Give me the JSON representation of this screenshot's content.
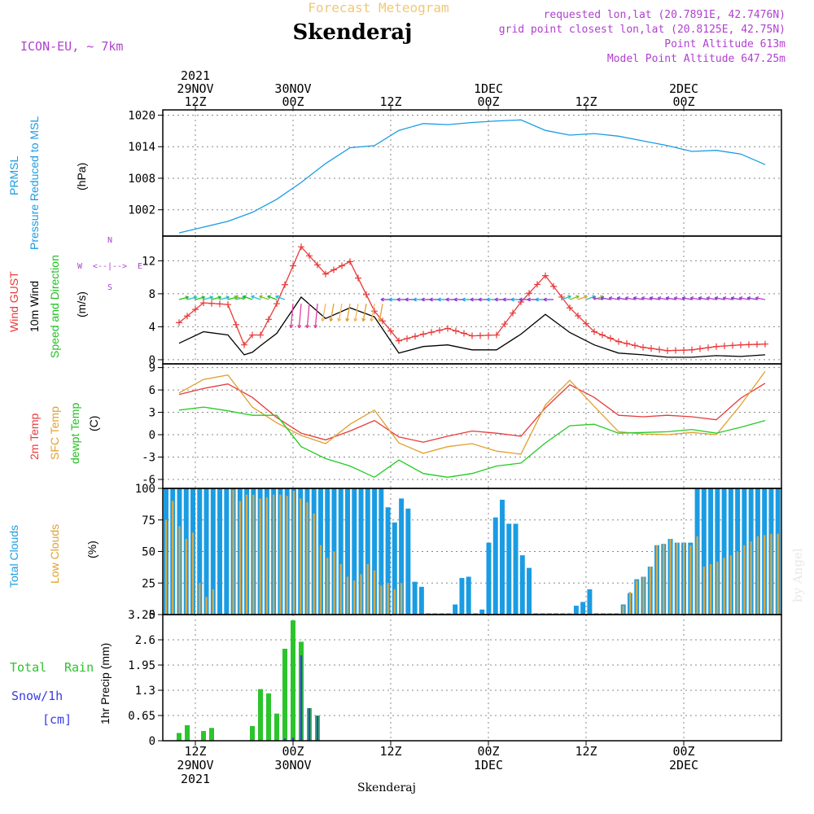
{
  "header": {
    "subtitle": "Forecast Meteogram",
    "location": "Skenderaj",
    "model": "ICON-EU, ~ 7km",
    "requested": "requested lon,lat (20.7891E, 42.7476N)",
    "grid_point": "grid point closest lon,lat (20.8125E, 42.75N)",
    "point_altitude": "Point Altitude 613m",
    "model_altitude": "Model Point Altitude 647.25m",
    "footer_location": "Skenderaj",
    "watermark": "by Angel"
  },
  "colors": {
    "pressure": "#1a9ce3",
    "gust": "#e83a3a",
    "wind": "#000000",
    "direction": "#22c022",
    "temp": "#e83a3a",
    "sfc": "#e0a030",
    "dewpt": "#22cc22",
    "total_clouds": "#1a9ce3",
    "low_clouds": "#d4a84a",
    "rain": "#2cc42c",
    "snow": "#3a3ae8",
    "header_purple": "#b040d0",
    "header_gold": "#f0c878"
  },
  "chart_data": [
    {
      "type": "line",
      "title": "",
      "series_name": "PRMSL Pressure Reduced to MSL",
      "ylabel": "(hPa)",
      "ylim": [
        997,
        1021
      ],
      "yticks": [
        "1002",
        "1008",
        "1014",
        "1020"
      ],
      "x_hours": [
        0,
        3,
        6,
        9,
        12,
        15,
        18,
        21,
        24,
        27,
        30,
        33,
        36,
        39,
        42,
        45,
        48,
        51,
        54,
        57,
        60,
        63,
        66,
        69,
        72
      ],
      "values": [
        997.6,
        998.7,
        999.8,
        1001.5,
        1004,
        1007.2,
        1010.8,
        1013.8,
        1014.2,
        1017.1,
        1018.4,
        1018.2,
        1018.6,
        1018.9,
        1019.1,
        1017.1,
        1016.2,
        1016.5,
        1016,
        1015.1,
        1014.2,
        1013.1,
        1013.3,
        1012.6,
        1010.6
      ]
    },
    {
      "type": "line",
      "title": "",
      "ylabel": "(m/s)",
      "ylim": [
        -0.5,
        15
      ],
      "yticks": [
        "0",
        "4",
        "8",
        "12"
      ],
      "compass": [
        "N",
        "S",
        "W",
        "E",
        "<--|-->"
      ],
      "series": [
        {
          "name": "Wind GUST",
          "x_hours": [
            0,
            3,
            6,
            8,
            9,
            10,
            12,
            15,
            18,
            21,
            24,
            27,
            30,
            33,
            36,
            39,
            42,
            45,
            48,
            51,
            54,
            57,
            60,
            63,
            66,
            69,
            72
          ],
          "values": [
            4.5,
            6.9,
            6.7,
            1.8,
            3,
            3,
            6.8,
            13.7,
            10.4,
            11.9,
            5.9,
            2.3,
            3.1,
            3.8,
            2.9,
            3,
            7,
            10.2,
            6.3,
            3.4,
            2.2,
            1.5,
            1.1,
            1.2,
            1.6,
            1.8,
            1.9
          ]
        },
        {
          "name": "10m Wind",
          "x_hours": [
            0,
            3,
            6,
            8,
            9,
            10,
            12,
            15,
            18,
            21,
            24,
            27,
            30,
            33,
            36,
            39,
            42,
            45,
            48,
            51,
            54,
            57,
            60,
            63,
            66,
            69,
            72
          ],
          "values": [
            2,
            3.4,
            3,
            0.6,
            0.9,
            1.7,
            3.2,
            7.6,
            5,
            6.3,
            5.2,
            0.8,
            1.6,
            1.8,
            1.2,
            1.2,
            3.1,
            5.5,
            3.3,
            1.8,
            0.8,
            0.6,
            0.3,
            0.3,
            0.5,
            0.4,
            0.6
          ]
        }
      ]
    },
    {
      "type": "line",
      "title": "",
      "ylabel": "(C)",
      "ylim": [
        -7.2,
        9.5
      ],
      "yticks": [
        "-6",
        "-3",
        "0",
        "3",
        "6",
        "9"
      ],
      "series": [
        {
          "name": "2m Temp",
          "x_hours": [
            0,
            3,
            6,
            9,
            12,
            15,
            18,
            21,
            24,
            27,
            30,
            33,
            36,
            39,
            42,
            45,
            48,
            51,
            54,
            57,
            60,
            63,
            66,
            69,
            72
          ],
          "values": [
            5.4,
            6.2,
            6.8,
            5,
            2.3,
            0.2,
            -0.7,
            0.5,
            1.9,
            -0.3,
            -1,
            -0.2,
            0.5,
            0.2,
            -0.2,
            3.6,
            6.7,
            5,
            2.6,
            2.4,
            2.6,
            2.4,
            2,
            4.9,
            6.9
          ]
        },
        {
          "name": "SFC Temp",
          "x_hours": [
            0,
            3,
            6,
            9,
            12,
            15,
            18,
            21,
            24,
            27,
            30,
            33,
            36,
            39,
            42,
            45,
            48,
            51,
            54,
            57,
            60,
            63,
            66,
            69,
            72
          ],
          "values": [
            5.6,
            7.4,
            8,
            3.7,
            1.6,
            -0.1,
            -1.2,
            1.4,
            3.3,
            -1.1,
            -2.5,
            -1.6,
            -1.2,
            -2.2,
            -2.6,
            4,
            7.3,
            3.8,
            0.4,
            0.1,
            0,
            0.3,
            0,
            4,
            8.5
          ]
        },
        {
          "name": "dewpt Temp",
          "x_hours": [
            0,
            3,
            6,
            9,
            12,
            15,
            18,
            21,
            24,
            27,
            30,
            33,
            36,
            39,
            42,
            45,
            48,
            51,
            54,
            57,
            60,
            63,
            66,
            69,
            72
          ],
          "values": [
            3.3,
            3.7,
            3.2,
            2.6,
            2.6,
            -1.6,
            -3.2,
            -4.2,
            -5.7,
            -3.4,
            -5.2,
            -5.7,
            -5.2,
            -4.2,
            -3.8,
            -1.1,
            1.2,
            1.4,
            0.2,
            0.3,
            0.4,
            0.7,
            0.2,
            1,
            1.9
          ]
        }
      ]
    },
    {
      "type": "bar",
      "title": "",
      "ylabel": "(%)",
      "ylim": [
        0,
        100
      ],
      "yticks": [
        "0",
        "25",
        "50",
        "75",
        "100"
      ],
      "series": [
        {
          "name": "Total Clouds",
          "values": [
            100,
            100,
            100,
            100,
            100,
            100,
            100,
            100,
            100,
            100,
            100,
            100,
            100,
            100,
            100,
            100,
            100,
            100,
            100,
            100,
            100,
            100,
            100,
            100,
            100,
            100,
            100,
            100,
            100,
            100,
            100,
            100,
            100,
            85,
            73,
            92,
            84,
            26,
            22,
            1,
            1,
            1,
            1,
            8,
            29,
            30,
            1,
            4,
            57,
            77,
            91,
            72,
            72,
            47,
            37,
            1,
            1,
            1,
            1,
            1,
            1,
            7,
            10,
            20,
            1,
            1,
            1,
            1,
            8,
            17,
            28,
            30,
            38,
            55,
            56,
            60,
            57,
            57,
            57,
            100,
            100,
            100,
            100,
            100,
            100,
            100,
            100,
            100,
            100,
            100,
            100,
            100
          ]
        },
        {
          "name": "Low Clouds",
          "values": [
            75,
            90,
            70,
            60,
            65,
            25,
            14,
            20,
            0,
            0,
            99,
            90,
            95,
            95,
            92,
            93,
            95,
            95,
            94,
            98,
            92,
            89,
            80,
            55,
            45,
            50,
            40,
            30,
            27,
            32,
            40,
            35,
            23,
            25,
            20,
            25,
            0,
            0,
            0,
            0,
            0,
            0,
            0,
            0,
            0,
            0,
            0,
            0,
            0,
            0,
            0,
            0,
            0,
            0,
            0,
            0,
            0,
            0,
            0,
            0,
            0,
            0,
            0,
            0,
            0,
            0,
            0,
            0,
            7,
            18,
            27,
            30,
            38,
            55,
            56,
            60,
            57,
            57,
            55,
            62,
            38,
            40,
            42,
            45,
            47,
            50,
            55,
            58,
            62,
            63,
            64,
            64
          ]
        }
      ]
    },
    {
      "type": "bar",
      "title": "",
      "ylabel": "1hr Precip (mm)",
      "ylim": [
        0,
        3.25
      ],
      "yticks": [
        "0",
        "0.65",
        "1.3",
        "1.95",
        "2.6",
        "3.25"
      ],
      "series": [
        {
          "name": "Total Rain",
          "x_hours": [
            0,
            1,
            3,
            4,
            9,
            10,
            11,
            12,
            13,
            14,
            15,
            16,
            17
          ],
          "values": [
            0.2,
            0.4,
            0.25,
            0.33,
            0.38,
            1.33,
            1.22,
            0.7,
            2.37,
            3.1,
            2.55,
            0.84,
            0.65
          ]
        },
        {
          "name": "Snow/1h [cm]",
          "x_hours": [
            13,
            14,
            15,
            16,
            17
          ],
          "values": [
            0.06,
            0.08,
            2.2,
            0.84,
            0.64
          ]
        }
      ]
    }
  ],
  "axes": {
    "time_labels_top": [
      {
        "hour": 2,
        "lines": [
          "2021",
          "29NOV",
          "12Z"
        ]
      },
      {
        "hour": 14,
        "lines": [
          "30NOV",
          "00Z"
        ]
      },
      {
        "hour": 26,
        "lines": [
          "12Z"
        ]
      },
      {
        "hour": 38,
        "lines": [
          "1DEC",
          "00Z"
        ]
      },
      {
        "hour": 50,
        "lines": [
          "12Z"
        ]
      },
      {
        "hour": 62,
        "lines": [
          "2DEC",
          "00Z"
        ]
      }
    ],
    "time_labels_bottom": [
      {
        "hour": 2,
        "lines": [
          "12Z",
          "29NOV",
          "2021"
        ]
      },
      {
        "hour": 14,
        "lines": [
          "00Z",
          "30NOV"
        ]
      },
      {
        "hour": 26,
        "lines": [
          "12Z"
        ]
      },
      {
        "hour": 38,
        "lines": [
          "00Z",
          "1DEC"
        ]
      },
      {
        "hour": 50,
        "lines": [
          "12Z"
        ]
      },
      {
        "hour": 62,
        "lines": [
          "00Z",
          "2DEC"
        ]
      }
    ]
  },
  "panel_labels": {
    "pressure": [
      "PRMSL",
      "Pressure Reduced to MSL"
    ],
    "wind": [
      "Wind GUST",
      "10m Wind",
      "Speed and Direction"
    ],
    "temp": [
      "2m Temp",
      "SFC Temp",
      "dewpt Temp"
    ],
    "clouds": [
      "Total Clouds",
      "Low Clouds"
    ],
    "precip": [
      "Total",
      "Rain",
      "Snow/1h",
      "[cm]"
    ]
  }
}
